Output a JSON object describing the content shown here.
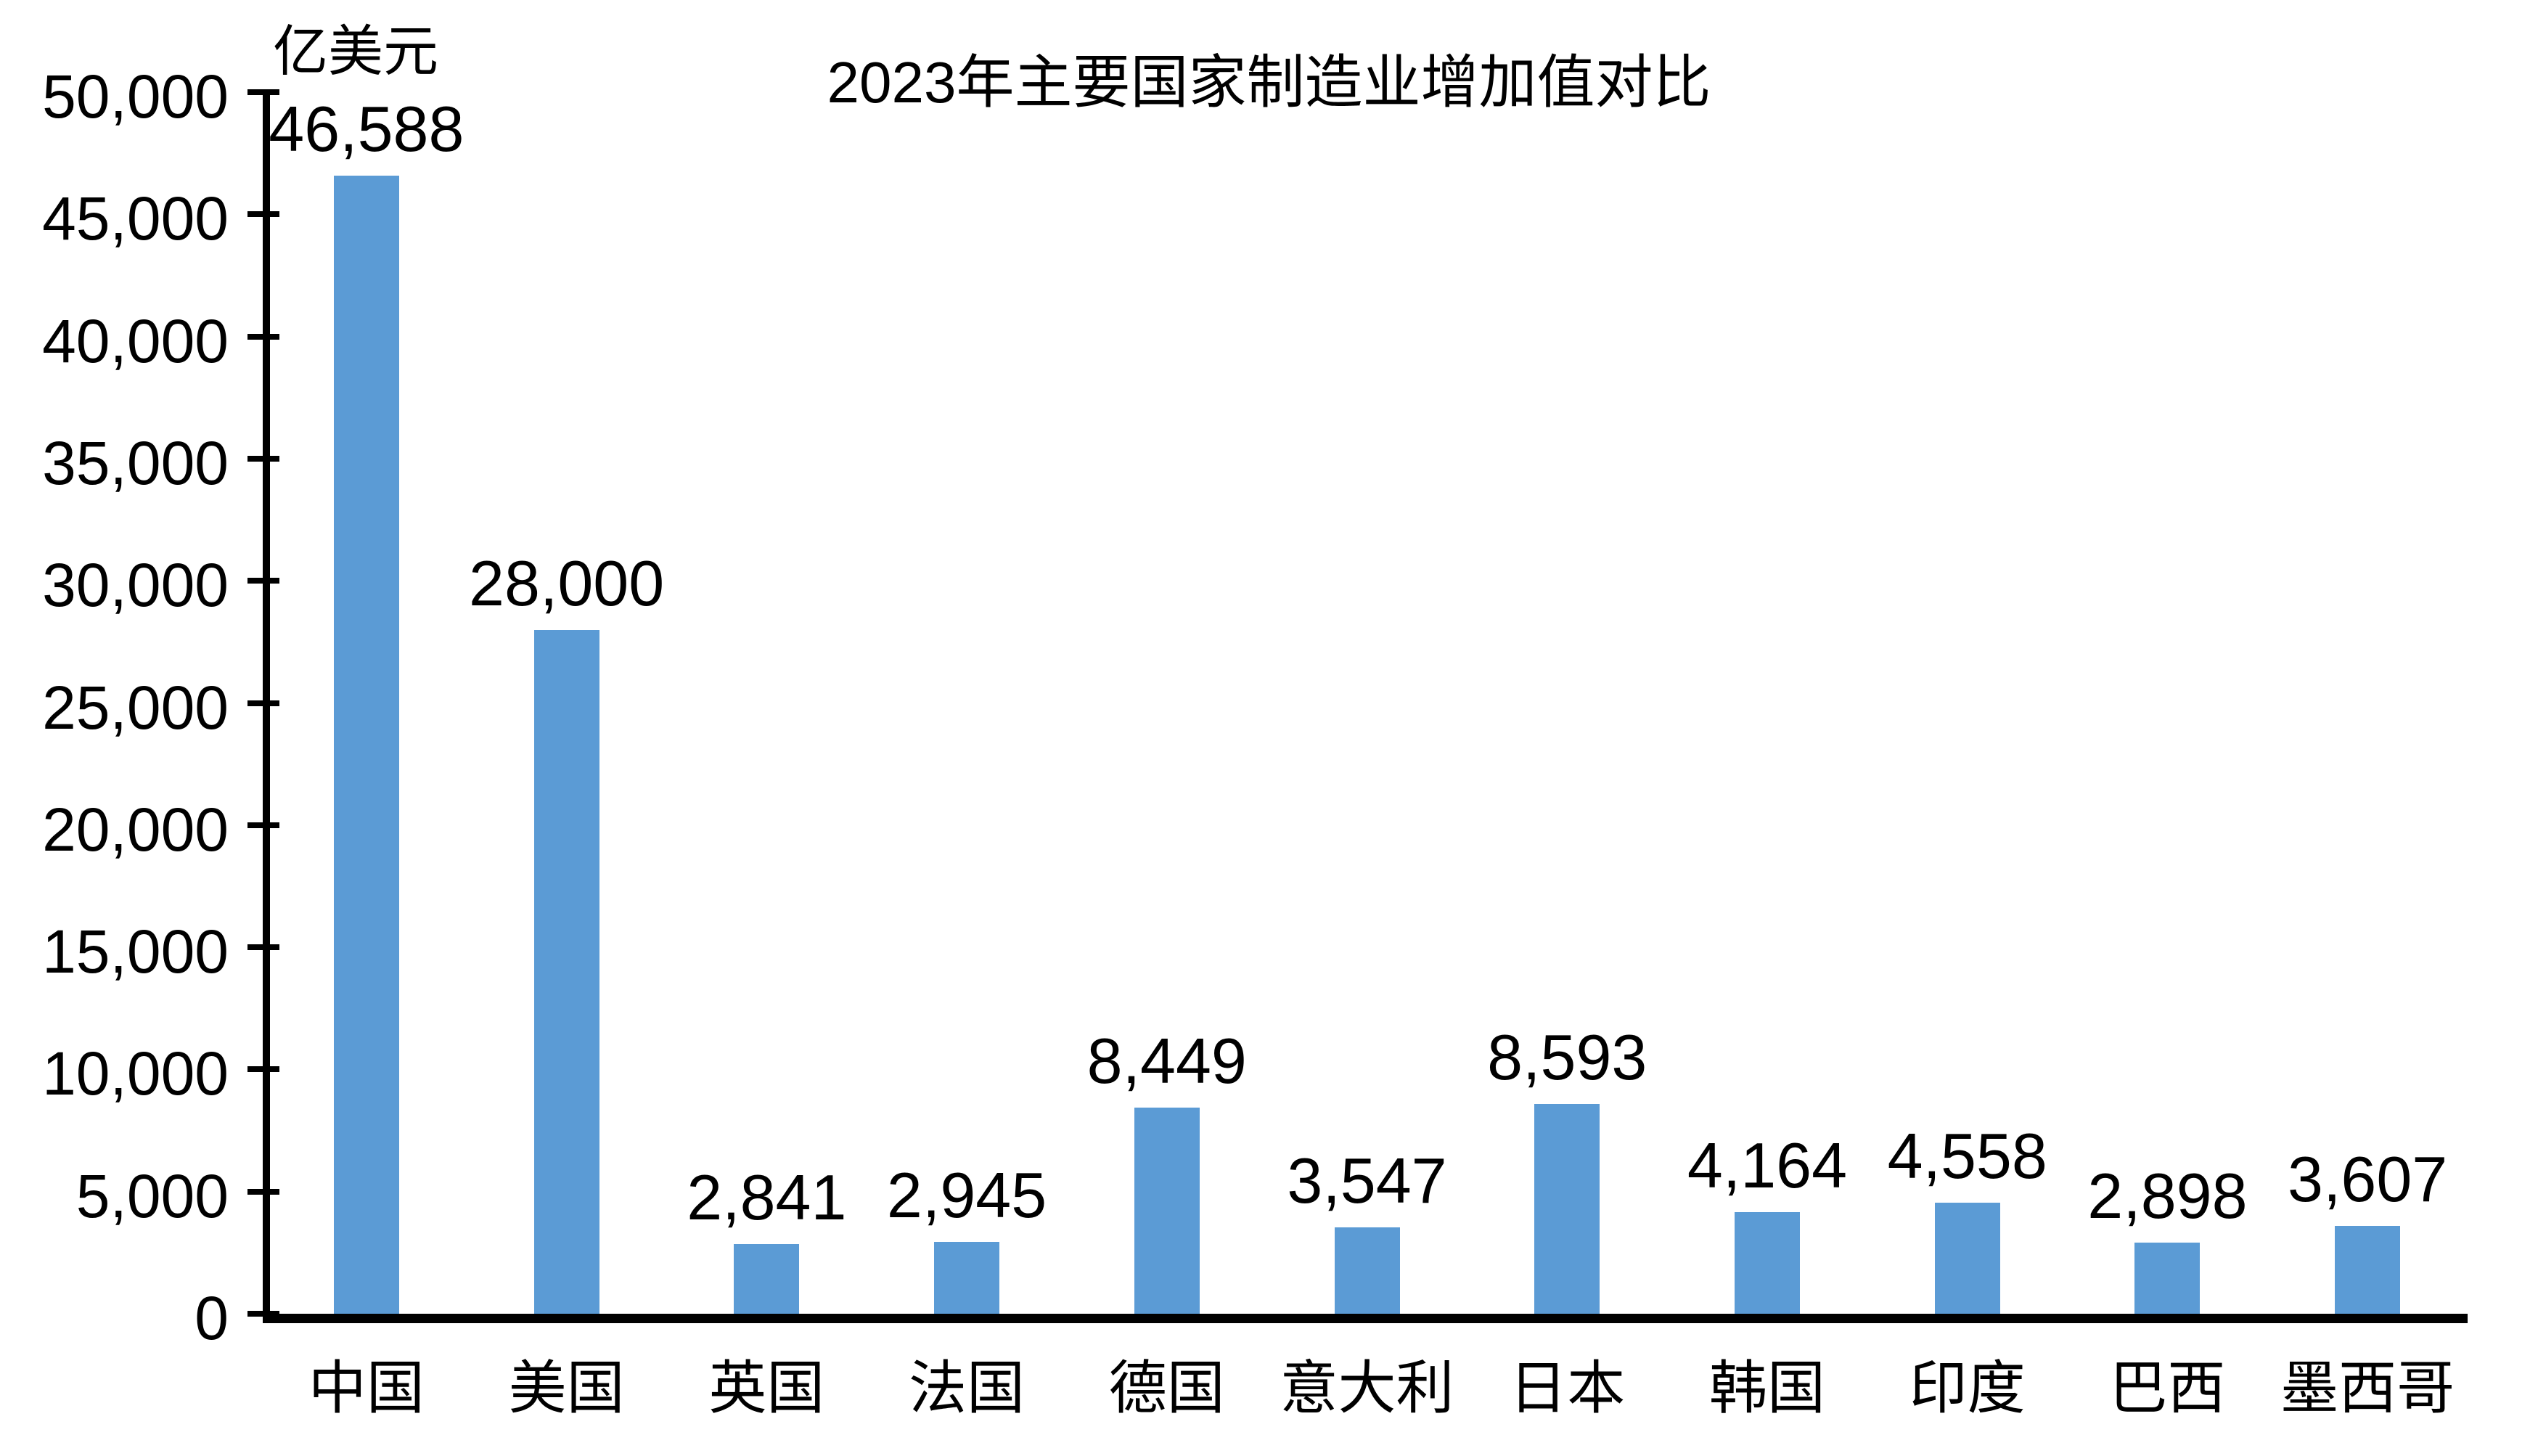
{
  "title": "2023年主要国家制造业增加值对比",
  "unit_label": "亿美元",
  "colors": {
    "bar": "#5B9BD5",
    "axis": "#000000",
    "text": "#000000",
    "background": "#FFFFFF"
  },
  "chart_data": {
    "type": "bar",
    "title": "2023年主要国家制造业增加值对比",
    "unit": "亿美元",
    "categories": [
      "中国",
      "美国",
      "英国",
      "法国",
      "德国",
      "意大利",
      "日本",
      "韩国",
      "印度",
      "巴西",
      "墨西哥"
    ],
    "values": [
      46588,
      28000,
      2841,
      2945,
      8449,
      3547,
      8593,
      4164,
      4558,
      2898,
      3607
    ],
    "data_labels": [
      "46,588",
      "28,000",
      "2,841",
      "2,945",
      "8,449",
      "3,547",
      "8,593",
      "4,164",
      "4,558",
      "2,898",
      "3,607"
    ],
    "xlabel": "",
    "ylabel": "亿美元",
    "ylim": [
      0,
      50000
    ],
    "ytick_step": 5000,
    "yticks": [
      {
        "value": 0,
        "label": "0"
      },
      {
        "value": 5000,
        "label": "5,000"
      },
      {
        "value": 10000,
        "label": "10,000"
      },
      {
        "value": 15000,
        "label": "15,000"
      },
      {
        "value": 20000,
        "label": "20,000"
      },
      {
        "value": 25000,
        "label": "25,000"
      },
      {
        "value": 30000,
        "label": "30,000"
      },
      {
        "value": 35000,
        "label": "35,000"
      },
      {
        "value": 40000,
        "label": "40,000"
      },
      {
        "value": 45000,
        "label": "45,000"
      },
      {
        "value": 50000,
        "label": "50,000"
      }
    ],
    "grid": false,
    "legend_position": "none",
    "bar_color": "#5B9BD5"
  }
}
